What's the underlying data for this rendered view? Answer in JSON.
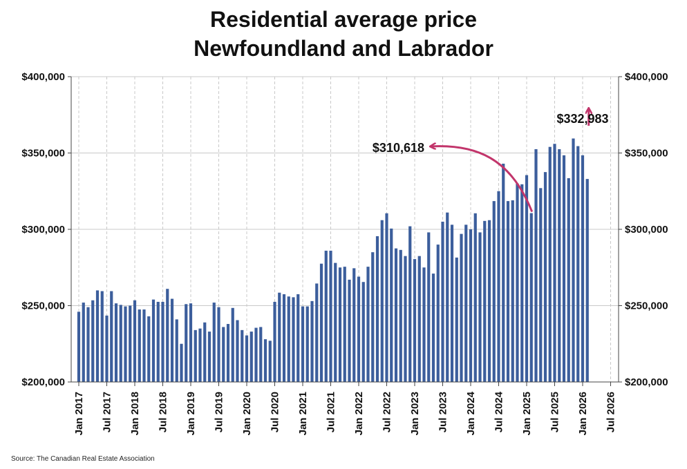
{
  "chart_data": {
    "type": "bar",
    "title": [
      "Residential average price",
      "Newfoundland and Labrador"
    ],
    "source": "Source: The Canadian Real Estate Association",
    "bar_color": "#3c5e9c",
    "annotation_color": "#c2356b",
    "ylim": [
      200000,
      400000
    ],
    "yticks": [
      200000,
      250000,
      300000,
      350000,
      400000
    ],
    "ytick_labels": [
      "$200,000",
      "$250,000",
      "$300,000",
      "$350,000",
      "$400,000"
    ],
    "xtick_labels": [
      "Jan 2017",
      "Jul 2017",
      "Jan 2018",
      "Jul 2018",
      "Jan 2019",
      "Jul 2019",
      "Jan 2020",
      "Jul 2020",
      "Jan 2021",
      "Jul 2021",
      "Jan 2022",
      "Jul 2022",
      "Jan 2023",
      "Jul 2023",
      "Jan 2024",
      "Jul 2024",
      "Jan 2025",
      "Jul 2025",
      "Jan 2026",
      "Jul 2026"
    ],
    "grid": true,
    "start": "Jan 2017",
    "values": [
      246000,
      252000,
      249000,
      253500,
      260000,
      259500,
      243500,
      259500,
      251500,
      250500,
      249500,
      250000,
      253500,
      247500,
      247500,
      243000,
      254000,
      252500,
      252500,
      261000,
      254500,
      241000,
      225000,
      251000,
      251500,
      234000,
      235000,
      239000,
      233000,
      252000,
      249000,
      236000,
      238000,
      248500,
      240500,
      234000,
      230500,
      233000,
      235500,
      236000,
      228000,
      227000,
      252500,
      258500,
      257500,
      256000,
      255500,
      257500,
      249500,
      249500,
      253000,
      264500,
      277500,
      286000,
      286000,
      278000,
      275000,
      275500,
      267000,
      274500,
      269000,
      265500,
      275500,
      285000,
      295500,
      306000,
      310500,
      300500,
      287500,
      286500,
      282500,
      302000,
      280500,
      282500,
      275000,
      298000,
      271000,
      290000,
      305000,
      311000,
      303000,
      281500,
      297000,
      303000,
      300000,
      310500,
      298000,
      305500,
      306000,
      318500,
      325000,
      343000,
      318500,
      319000,
      330000,
      329500,
      335500,
      310618,
      352500,
      327000,
      337500,
      354000,
      356000,
      352500,
      348500,
      333500,
      359500,
      354500,
      348500,
      332983
    ],
    "annotations": [
      {
        "label": "$310,618",
        "category_index": 97
      },
      {
        "label": "$332,983",
        "category_index": 109
      }
    ]
  }
}
